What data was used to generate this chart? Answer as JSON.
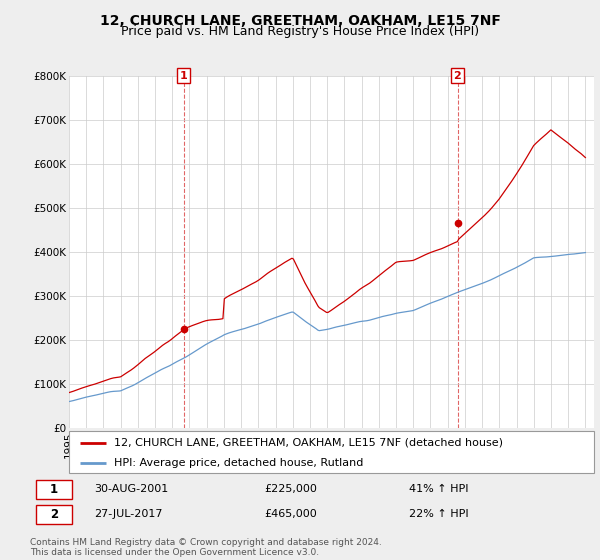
{
  "title": "12, CHURCH LANE, GREETHAM, OAKHAM, LE15 7NF",
  "subtitle": "Price paid vs. HM Land Registry's House Price Index (HPI)",
  "ylim": [
    0,
    800000
  ],
  "yticks": [
    0,
    100000,
    200000,
    300000,
    400000,
    500000,
    600000,
    700000,
    800000
  ],
  "ytick_labels": [
    "£0",
    "£100K",
    "£200K",
    "£300K",
    "£400K",
    "£500K",
    "£600K",
    "£700K",
    "£800K"
  ],
  "xlim_start": 1995.0,
  "xlim_end": 2025.5,
  "sale1_year": 2001.66,
  "sale1_price": 225000,
  "sale2_year": 2017.57,
  "sale2_price": 465000,
  "sale1_date": "30-AUG-2001",
  "sale1_hpi": "41% ↑ HPI",
  "sale2_date": "27-JUL-2017",
  "sale2_hpi": "22% ↑ HPI",
  "red_line_color": "#cc0000",
  "blue_line_color": "#6699cc",
  "bg_color": "#eeeeee",
  "plot_bg_color": "#ffffff",
  "legend_label_red": "12, CHURCH LANE, GREETHAM, OAKHAM, LE15 7NF (detached house)",
  "legend_label_blue": "HPI: Average price, detached house, Rutland",
  "footnote": "Contains HM Land Registry data © Crown copyright and database right 2024.\nThis data is licensed under the Open Government Licence v3.0.",
  "title_fontsize": 10,
  "subtitle_fontsize": 9,
  "tick_fontsize": 7.5,
  "legend_fontsize": 8,
  "footnote_fontsize": 6.5
}
